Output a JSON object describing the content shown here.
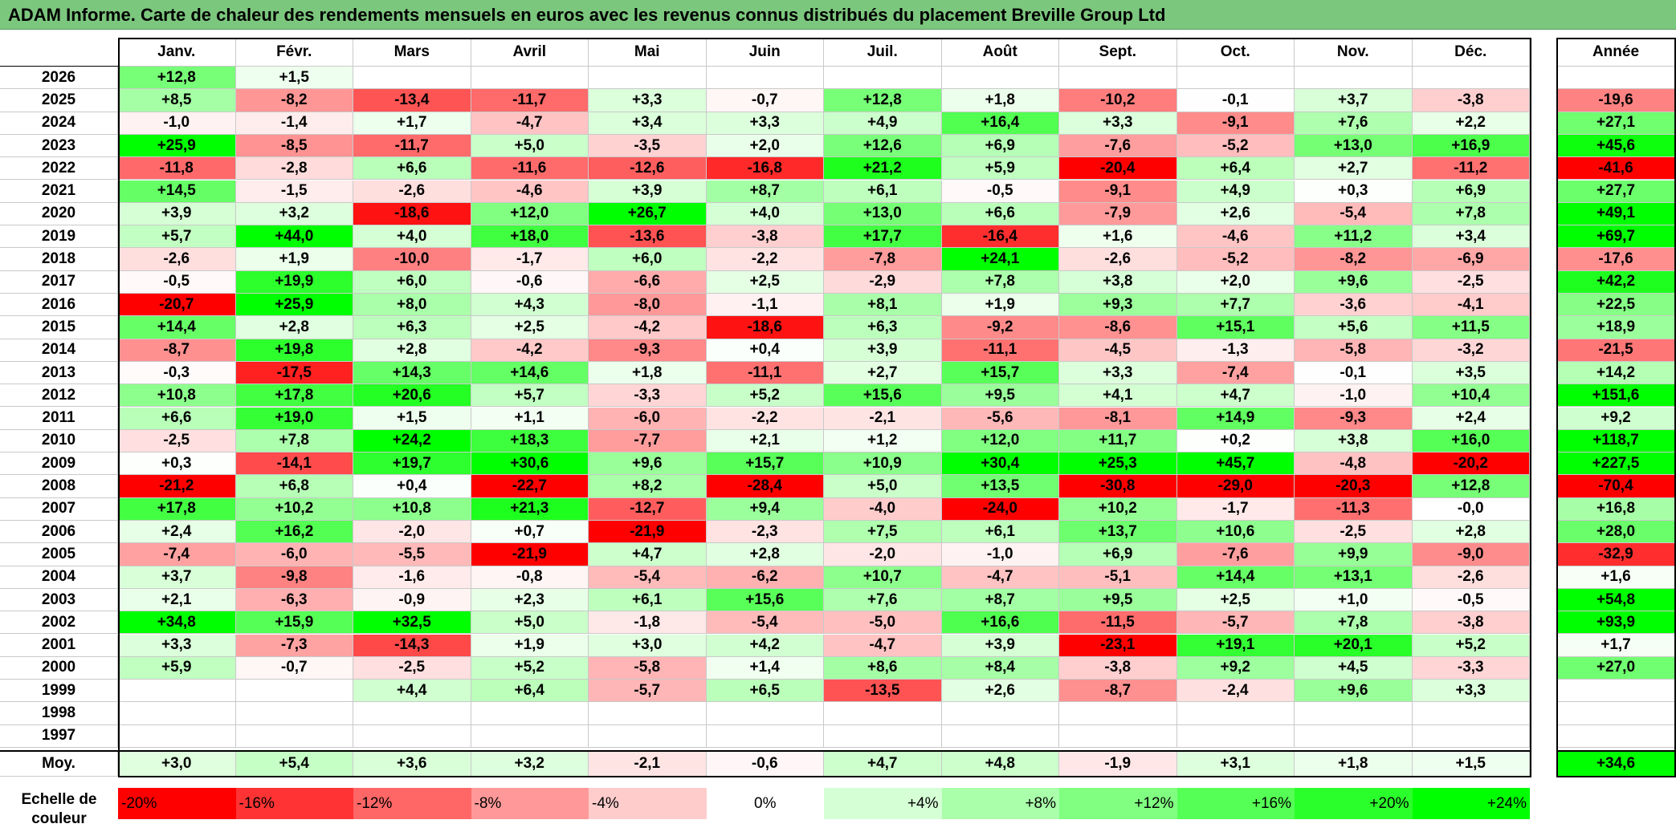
{
  "title": "ADAM Informe. Carte de chaleur des rendements mensuels en euros avec les revenus connus distribués du placement Breville Group Ltd",
  "chart_data": {
    "type": "heatmap",
    "title": "ADAM Informe. Carte de chaleur des rendements mensuels en euros avec les revenus connus distribués du placement Breville Group Ltd",
    "months": [
      "Janv.",
      "Févr.",
      "Mars",
      "Avril",
      "Mai",
      "Juin",
      "Juil.",
      "Août",
      "Sept.",
      "Oct.",
      "Nov.",
      "Déc."
    ],
    "annual_label": "Année",
    "rows": [
      {
        "year": "2026",
        "values": [
          "+12,8",
          "+1,5",
          "",
          "",
          "",
          "",
          "",
          "",
          "",
          "",
          "",
          ""
        ],
        "annual": ""
      },
      {
        "year": "2025",
        "values": [
          "+8,5",
          "-8,2",
          "-13,4",
          "-11,7",
          "+3,3",
          "-0,7",
          "+12,8",
          "+1,8",
          "-10,2",
          "-0,1",
          "+3,7",
          "-3,8"
        ],
        "annual": "-19,6"
      },
      {
        "year": "2024",
        "values": [
          "-1,0",
          "-1,4",
          "+1,7",
          "-4,7",
          "+3,4",
          "+3,3",
          "+4,9",
          "+16,4",
          "+3,3",
          "-9,1",
          "+7,6",
          "+2,2"
        ],
        "annual": "+27,1"
      },
      {
        "year": "2023",
        "values": [
          "+25,9",
          "-8,5",
          "-11,7",
          "+5,0",
          "-3,5",
          "+2,0",
          "+12,6",
          "+6,9",
          "-7,6",
          "-5,2",
          "+13,0",
          "+16,9"
        ],
        "annual": "+45,6"
      },
      {
        "year": "2022",
        "values": [
          "-11,8",
          "-2,8",
          "+6,6",
          "-11,6",
          "-12,6",
          "-16,8",
          "+21,2",
          "+5,9",
          "-20,4",
          "+6,4",
          "+2,7",
          "-11,2"
        ],
        "annual": "-41,6"
      },
      {
        "year": "2021",
        "values": [
          "+14,5",
          "-1,5",
          "-2,6",
          "-4,6",
          "+3,9",
          "+8,7",
          "+6,1",
          "-0,5",
          "-9,1",
          "+4,9",
          "+0,3",
          "+6,9"
        ],
        "annual": "+27,7"
      },
      {
        "year": "2020",
        "values": [
          "+3,9",
          "+3,2",
          "-18,6",
          "+12,0",
          "+26,7",
          "+4,0",
          "+13,0",
          "+6,6",
          "-7,9",
          "+2,6",
          "-5,4",
          "+7,8"
        ],
        "annual": "+49,1"
      },
      {
        "year": "2019",
        "values": [
          "+5,7",
          "+44,0",
          "+4,0",
          "+18,0",
          "-13,6",
          "-3,8",
          "+17,7",
          "-16,4",
          "+1,6",
          "-4,6",
          "+11,2",
          "+3,4"
        ],
        "annual": "+69,7"
      },
      {
        "year": "2018",
        "values": [
          "-2,6",
          "+1,9",
          "-10,0",
          "-1,7",
          "+6,0",
          "-2,2",
          "-7,8",
          "+24,1",
          "-2,6",
          "-5,2",
          "-8,2",
          "-6,9"
        ],
        "annual": "-17,6"
      },
      {
        "year": "2017",
        "values": [
          "-0,5",
          "+19,9",
          "+6,0",
          "-0,6",
          "-6,6",
          "+2,5",
          "-2,9",
          "+7,8",
          "+3,8",
          "+2,0",
          "+9,6",
          "-2,5"
        ],
        "annual": "+42,2"
      },
      {
        "year": "2016",
        "values": [
          "-20,7",
          "+25,9",
          "+8,0",
          "+4,3",
          "-8,0",
          "-1,1",
          "+8,1",
          "+1,9",
          "+9,3",
          "+7,7",
          "-3,6",
          "-4,1"
        ],
        "annual": "+22,5"
      },
      {
        "year": "2015",
        "values": [
          "+14,4",
          "+2,8",
          "+6,3",
          "+2,5",
          "-4,2",
          "-18,6",
          "+6,3",
          "-9,2",
          "-8,6",
          "+15,1",
          "+5,6",
          "+11,5"
        ],
        "annual": "+18,9"
      },
      {
        "year": "2014",
        "values": [
          "-8,7",
          "+19,8",
          "+2,8",
          "-4,2",
          "-9,3",
          "+0,4",
          "+3,9",
          "-11,1",
          "-4,5",
          "-1,3",
          "-5,8",
          "-3,2"
        ],
        "annual": "-21,5"
      },
      {
        "year": "2013",
        "values": [
          "-0,3",
          "-17,5",
          "+14,3",
          "+14,6",
          "+1,8",
          "-11,1",
          "+2,7",
          "+15,7",
          "+3,3",
          "-7,4",
          "-0,1",
          "+3,5"
        ],
        "annual": "+14,2"
      },
      {
        "year": "2012",
        "values": [
          "+10,8",
          "+17,8",
          "+20,6",
          "+5,7",
          "-3,3",
          "+5,2",
          "+15,6",
          "+9,5",
          "+4,1",
          "+4,7",
          "-1,0",
          "+10,4"
        ],
        "annual": "+151,6"
      },
      {
        "year": "2011",
        "values": [
          "+6,6",
          "+19,0",
          "+1,5",
          "+1,1",
          "-6,0",
          "-2,2",
          "-2,1",
          "-5,6",
          "-8,1",
          "+14,9",
          "-9,3",
          "+2,4"
        ],
        "annual": "+9,2"
      },
      {
        "year": "2010",
        "values": [
          "-2,5",
          "+7,8",
          "+24,2",
          "+18,3",
          "-7,7",
          "+2,1",
          "+1,2",
          "+12,0",
          "+11,7",
          "+0,2",
          "+3,8",
          "+16,0"
        ],
        "annual": "+118,7"
      },
      {
        "year": "2009",
        "values": [
          "+0,3",
          "-14,1",
          "+19,7",
          "+30,6",
          "+9,6",
          "+15,7",
          "+10,9",
          "+30,4",
          "+25,3",
          "+45,7",
          "-4,8",
          "-20,2"
        ],
        "annual": "+227,5"
      },
      {
        "year": "2008",
        "values": [
          "-21,2",
          "+6,8",
          "+0,4",
          "-22,7",
          "+8,2",
          "-28,4",
          "+5,0",
          "+13,5",
          "-30,8",
          "-29,0",
          "-20,3",
          "+12,8"
        ],
        "annual": "-70,4"
      },
      {
        "year": "2007",
        "values": [
          "+17,8",
          "+10,2",
          "+10,8",
          "+21,3",
          "-12,7",
          "+9,4",
          "-4,0",
          "-24,0",
          "+10,2",
          "-1,7",
          "-11,3",
          "-0,0"
        ],
        "annual": "+16,8"
      },
      {
        "year": "2006",
        "values": [
          "+2,4",
          "+16,2",
          "-2,0",
          "+0,7",
          "-21,9",
          "-2,3",
          "+7,5",
          "+6,1",
          "+13,7",
          "+10,6",
          "-2,5",
          "+2,8"
        ],
        "annual": "+28,0"
      },
      {
        "year": "2005",
        "values": [
          "-7,4",
          "-6,0",
          "-5,5",
          "-21,9",
          "+4,7",
          "+2,8",
          "-2,0",
          "-1,0",
          "+6,9",
          "-7,6",
          "+9,9",
          "-9,0"
        ],
        "annual": "-32,9"
      },
      {
        "year": "2004",
        "values": [
          "+3,7",
          "-9,8",
          "-1,6",
          "-0,8",
          "-5,4",
          "-6,2",
          "+10,7",
          "-4,7",
          "-5,1",
          "+14,4",
          "+13,1",
          "-2,6"
        ],
        "annual": "+1,6"
      },
      {
        "year": "2003",
        "values": [
          "+2,1",
          "-6,3",
          "-0,9",
          "+2,3",
          "+6,1",
          "+15,6",
          "+7,6",
          "+8,7",
          "+9,5",
          "+2,5",
          "+1,0",
          "-0,5"
        ],
        "annual": "+54,8"
      },
      {
        "year": "2002",
        "values": [
          "+34,8",
          "+15,9",
          "+32,5",
          "+5,0",
          "-1,8",
          "-5,4",
          "-5,0",
          "+16,6",
          "-11,5",
          "-5,7",
          "+7,8",
          "-3,8"
        ],
        "annual": "+93,9"
      },
      {
        "year": "2001",
        "values": [
          "+3,3",
          "-7,3",
          "-14,3",
          "+1,9",
          "+3,0",
          "+4,2",
          "-4,7",
          "+3,9",
          "-23,1",
          "+19,1",
          "+20,1",
          "+5,2"
        ],
        "annual": "+1,7"
      },
      {
        "year": "2000",
        "values": [
          "+5,9",
          "-0,7",
          "-2,5",
          "+5,2",
          "-5,8",
          "+1,4",
          "+8,6",
          "+8,4",
          "-3,8",
          "+9,2",
          "+4,5",
          "-3,3"
        ],
        "annual": "+27,0"
      },
      {
        "year": "1999",
        "values": [
          "",
          "",
          "+4,4",
          "+6,4",
          "-5,7",
          "+6,5",
          "-13,5",
          "+2,6",
          "-8,7",
          "-2,4",
          "+9,6",
          "+3,3"
        ],
        "annual": ""
      },
      {
        "year": "1998",
        "values": [
          "",
          "",
          "",
          "",
          "",
          "",
          "",
          "",
          "",
          "",
          "",
          ""
        ],
        "annual": ""
      },
      {
        "year": "1997",
        "values": [
          "",
          "",
          "",
          "",
          "",
          "",
          "",
          "",
          "",
          "",
          "",
          ""
        ],
        "annual": ""
      }
    ],
    "average": {
      "label": "Moy.",
      "values": [
        "+3,0",
        "+5,4",
        "+3,6",
        "+3,2",
        "-2,1",
        "-0,6",
        "+4,7",
        "+4,8",
        "-1,9",
        "+3,1",
        "+1,8",
        "+1,5"
      ],
      "annual": "+34,6"
    },
    "scale": {
      "label": "Echelle de couleur",
      "steps": [
        "-20%",
        "-16%",
        "-12%",
        "-8%",
        "-4%",
        "0%",
        "+4%",
        "+8%",
        "+12%",
        "+16%",
        "+20%",
        "+24%"
      ],
      "values": [
        -20,
        -16,
        -12,
        -8,
        -4,
        0,
        4,
        8,
        12,
        16,
        20,
        24
      ]
    }
  }
}
